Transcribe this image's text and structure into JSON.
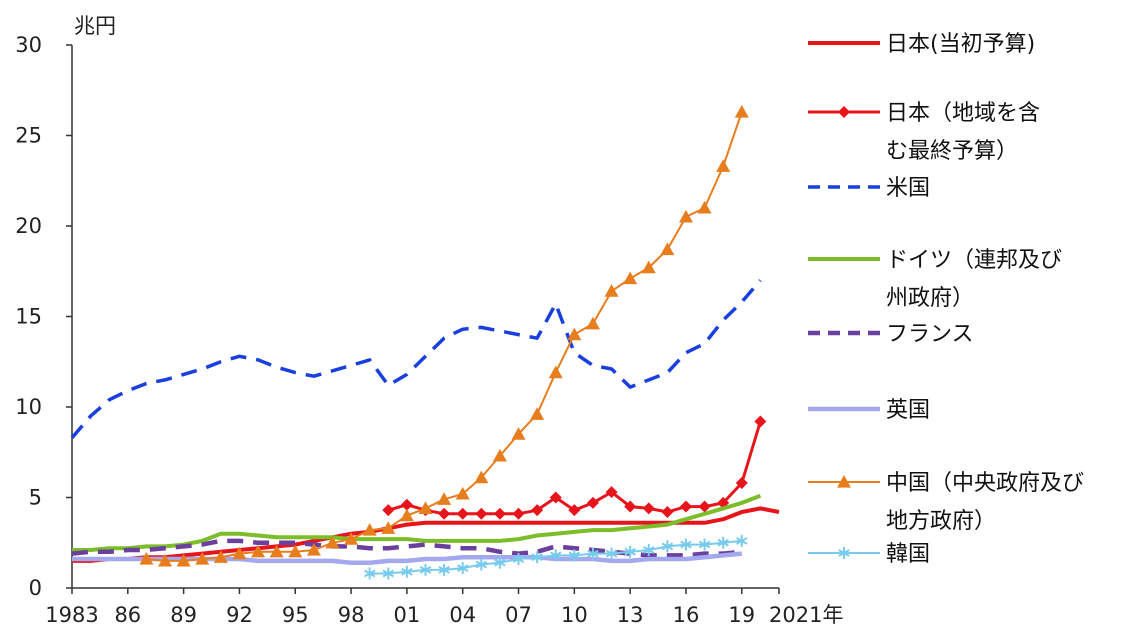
{
  "chart_data": {
    "type": "line",
    "y_unit_label": "兆円",
    "x_suffix_label": "年",
    "ylim": [
      0,
      30
    ],
    "yticks": [
      0,
      5,
      10,
      15,
      20,
      25,
      30
    ],
    "xlim": [
      1983,
      2021
    ],
    "xticks": [
      {
        "value": 1983,
        "label": "1983"
      },
      {
        "value": 1986,
        "label": "86"
      },
      {
        "value": 1989,
        "label": "89"
      },
      {
        "value": 1992,
        "label": "92"
      },
      {
        "value": 1995,
        "label": "95"
      },
      {
        "value": 1998,
        "label": "98"
      },
      {
        "value": 2001,
        "label": "01"
      },
      {
        "value": 2004,
        "label": "04"
      },
      {
        "value": 2007,
        "label": "07"
      },
      {
        "value": 2010,
        "label": "10"
      },
      {
        "value": 2013,
        "label": "13"
      },
      {
        "value": 2016,
        "label": "16"
      },
      {
        "value": 2019,
        "label": "19"
      },
      {
        "value": 2021,
        "label": "2021"
      }
    ],
    "grid": false,
    "legend_position": "right",
    "series": [
      {
        "name": "日本(当初予算)",
        "color": "#e8141b",
        "style": "solid",
        "width": 4,
        "marker": "none",
        "x": [
          1983,
          1984,
          1985,
          1986,
          1987,
          1988,
          1989,
          1990,
          1991,
          1992,
          1993,
          1994,
          1995,
          1996,
          1997,
          1998,
          1999,
          2000,
          2001,
          2002,
          2003,
          2004,
          2005,
          2006,
          2007,
          2008,
          2009,
          2010,
          2011,
          2012,
          2013,
          2014,
          2015,
          2016,
          2017,
          2018,
          2019,
          2020,
          2021
        ],
        "y": [
          1.5,
          1.5,
          1.6,
          1.6,
          1.7,
          1.7,
          1.8,
          1.9,
          2.0,
          2.1,
          2.2,
          2.3,
          2.4,
          2.6,
          2.8,
          3.0,
          3.1,
          3.3,
          3.5,
          3.6,
          3.6,
          3.6,
          3.6,
          3.6,
          3.6,
          3.6,
          3.6,
          3.6,
          3.6,
          3.6,
          3.6,
          3.6,
          3.6,
          3.6,
          3.6,
          3.8,
          4.2,
          4.4,
          4.2
        ]
      },
      {
        "name": "日本（地域を含む最終予算）",
        "color": "#e8141b",
        "style": "solid",
        "width": 3,
        "marker": "diamond",
        "x": [
          2000,
          2001,
          2002,
          2003,
          2004,
          2005,
          2006,
          2007,
          2008,
          2009,
          2010,
          2011,
          2012,
          2013,
          2014,
          2015,
          2016,
          2017,
          2018,
          2019,
          2020
        ],
        "y": [
          4.3,
          4.6,
          4.3,
          4.1,
          4.1,
          4.1,
          4.1,
          4.1,
          4.3,
          5.0,
          4.3,
          4.7,
          5.3,
          4.5,
          4.4,
          4.2,
          4.5,
          4.5,
          4.7,
          5.8,
          9.2
        ]
      },
      {
        "name": "米国",
        "color": "#1a3fe0",
        "style": "dashed",
        "width": 3.5,
        "marker": "none",
        "x": [
          1983,
          1984,
          1985,
          1986,
          1987,
          1988,
          1989,
          1990,
          1991,
          1992,
          1993,
          1994,
          1995,
          1996,
          1997,
          1998,
          1999,
          2000,
          2001,
          2002,
          2003,
          2004,
          2005,
          2006,
          2007,
          2008,
          2009,
          2010,
          2011,
          2012,
          2013,
          2014,
          2015,
          2016,
          2017,
          2018,
          2019,
          2020
        ],
        "y": [
          8.3,
          9.5,
          10.4,
          10.9,
          11.3,
          11.5,
          11.8,
          12.1,
          12.5,
          12.8,
          12.6,
          12.2,
          11.9,
          11.7,
          12.0,
          12.3,
          12.6,
          11.2,
          11.8,
          12.8,
          13.8,
          14.3,
          14.4,
          14.2,
          14.0,
          13.8,
          15.7,
          13.0,
          12.3,
          12.1,
          11.1,
          11.5,
          11.9,
          13.0,
          13.5,
          14.8,
          15.8,
          17.0
        ]
      },
      {
        "name": "ドイツ（連邦及び州政府）",
        "color": "#7dbd29",
        "style": "solid",
        "width": 4,
        "marker": "none",
        "x": [
          1983,
          1984,
          1985,
          1986,
          1987,
          1988,
          1989,
          1990,
          1991,
          1992,
          1993,
          1994,
          1995,
          1996,
          1997,
          1998,
          1999,
          2000,
          2001,
          2002,
          2003,
          2004,
          2005,
          2006,
          2007,
          2008,
          2009,
          2010,
          2011,
          2012,
          2013,
          2014,
          2015,
          2016,
          2017,
          2018,
          2019,
          2020
        ],
        "y": [
          2.1,
          2.1,
          2.2,
          2.2,
          2.3,
          2.3,
          2.4,
          2.6,
          3.0,
          3.0,
          2.9,
          2.8,
          2.8,
          2.8,
          2.8,
          2.7,
          2.7,
          2.7,
          2.7,
          2.6,
          2.6,
          2.6,
          2.6,
          2.6,
          2.7,
          2.9,
          3.0,
          3.1,
          3.2,
          3.2,
          3.3,
          3.4,
          3.5,
          3.8,
          4.1,
          4.4,
          4.7,
          5.1
        ]
      },
      {
        "name": "フランス",
        "color": "#6a3f9e",
        "style": "dashed",
        "width": 4.5,
        "marker": "none",
        "x": [
          1983,
          1984,
          1985,
          1986,
          1987,
          1988,
          1989,
          1990,
          1991,
          1992,
          1993,
          1994,
          1995,
          1996,
          1997,
          1998,
          1999,
          2000,
          2001,
          2002,
          2003,
          2004,
          2005,
          2006,
          2007,
          2008,
          2009,
          2010,
          2011,
          2012,
          2013,
          2014,
          2015,
          2016,
          2017,
          2018,
          2019
        ],
        "y": [
          1.9,
          2.0,
          2.0,
          2.1,
          2.1,
          2.2,
          2.3,
          2.4,
          2.6,
          2.6,
          2.5,
          2.5,
          2.5,
          2.4,
          2.3,
          2.3,
          2.2,
          2.2,
          2.3,
          2.4,
          2.3,
          2.2,
          2.2,
          2.0,
          1.9,
          2.0,
          2.3,
          2.2,
          2.1,
          2.0,
          1.9,
          1.8,
          1.8,
          1.8,
          1.9,
          1.9,
          2.0
        ]
      },
      {
        "name": "英国",
        "color": "#a3a8ef",
        "style": "solid",
        "width": 4.5,
        "marker": "none",
        "x": [
          1983,
          1984,
          1985,
          1986,
          1987,
          1988,
          1989,
          1990,
          1991,
          1992,
          1993,
          1994,
          1995,
          1996,
          1997,
          1998,
          1999,
          2000,
          2001,
          2002,
          2003,
          2004,
          2005,
          2006,
          2007,
          2008,
          2009,
          2010,
          2011,
          2012,
          2013,
          2014,
          2015,
          2016,
          2017,
          2018,
          2019
        ],
        "y": [
          1.6,
          1.6,
          1.6,
          1.6,
          1.6,
          1.6,
          1.6,
          1.6,
          1.6,
          1.6,
          1.5,
          1.5,
          1.5,
          1.5,
          1.5,
          1.4,
          1.4,
          1.5,
          1.5,
          1.6,
          1.6,
          1.7,
          1.7,
          1.7,
          1.7,
          1.7,
          1.6,
          1.6,
          1.6,
          1.5,
          1.5,
          1.6,
          1.6,
          1.6,
          1.7,
          1.8,
          1.9
        ]
      },
      {
        "name": "中国（中央政府及び地方政府）",
        "color": "#e87d1e",
        "style": "solid",
        "width": 2,
        "marker": "triangle",
        "x": [
          1987,
          1988,
          1989,
          1990,
          1991,
          1992,
          1993,
          1994,
          1995,
          1996,
          1997,
          1998,
          1999,
          2000,
          2001,
          2002,
          2003,
          2004,
          2005,
          2006,
          2007,
          2008,
          2009,
          2010,
          2011,
          2012,
          2013,
          2014,
          2015,
          2016,
          2017,
          2018,
          2019
        ],
        "y": [
          1.6,
          1.5,
          1.5,
          1.6,
          1.7,
          1.9,
          2.0,
          2.0,
          2.0,
          2.1,
          2.5,
          2.7,
          3.2,
          3.3,
          4.0,
          4.4,
          4.9,
          5.2,
          6.1,
          7.3,
          8.5,
          9.6,
          11.9,
          14.0,
          14.6,
          16.4,
          17.1,
          17.7,
          18.7,
          20.5,
          21.0,
          23.3,
          26.3
        ]
      },
      {
        "name": "韓国",
        "color": "#79cbee",
        "style": "solid",
        "width": 2,
        "marker": "asterisk",
        "x": [
          1999,
          2000,
          2001,
          2002,
          2003,
          2004,
          2005,
          2006,
          2007,
          2008,
          2009,
          2010,
          2011,
          2012,
          2013,
          2014,
          2015,
          2016,
          2017,
          2018,
          2019
        ],
        "y": [
          0.8,
          0.8,
          0.9,
          1.0,
          1.0,
          1.1,
          1.3,
          1.4,
          1.6,
          1.7,
          1.8,
          1.8,
          1.9,
          1.9,
          2.0,
          2.1,
          2.3,
          2.4,
          2.4,
          2.5,
          2.6
        ]
      }
    ]
  },
  "legend": [
    {
      "series": 0,
      "lines": [
        "日本(当初予算)"
      ]
    },
    {
      "series": 1,
      "lines": [
        "日本（地域を含",
        "む最終予算）"
      ]
    },
    {
      "series": 2,
      "lines": [
        "米国"
      ]
    },
    {
      "series": 3,
      "lines": [
        "ドイツ（連邦及び",
        "州政府）"
      ]
    },
    {
      "series": 4,
      "lines": [
        "フランス"
      ]
    },
    {
      "series": 5,
      "lines": [
        "英国"
      ]
    },
    {
      "series": 6,
      "lines": [
        "中国（中央政府及び",
        "地方政府）"
      ]
    },
    {
      "series": 7,
      "lines": [
        "韓国"
      ]
    }
  ]
}
